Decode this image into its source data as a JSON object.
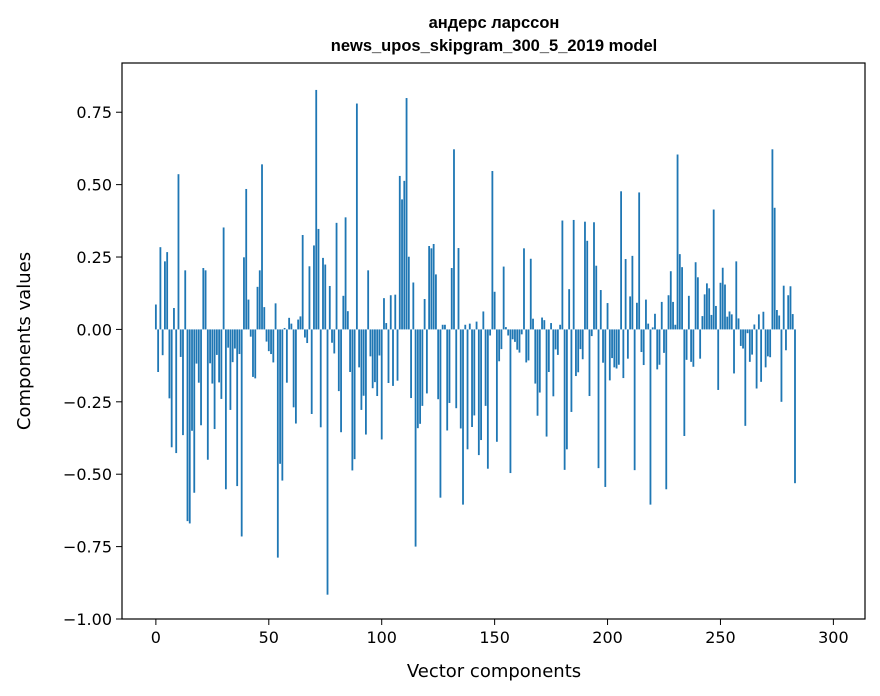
{
  "chart_data": {
    "type": "bar",
    "title_line1": "андерс ларссон",
    "title_line2": "news_upos_skipgram_300_5_2019 model",
    "xlabel": "Vector components",
    "ylabel": "Components values",
    "xlim": [
      -15,
      314
    ],
    "ylim": [
      -1.0,
      0.92
    ],
    "xticks": [
      0,
      50,
      100,
      150,
      200,
      250,
      300
    ],
    "xtick_labels": [
      "0",
      "50",
      "100",
      "150",
      "200",
      "250",
      "300"
    ],
    "yticks": [
      0.75,
      0.5,
      0.25,
      0.0,
      -0.25,
      -0.5,
      -0.75,
      -1.0
    ],
    "ytick_labels": [
      "0.75",
      "0.50",
      "0.25",
      "0.00",
      "−0.25",
      "−0.50",
      "−0.75",
      "−1.00"
    ],
    "bar_color": "#1f77b4",
    "grid": false,
    "values": [
      0.086,
      -0.147,
      0.284,
      -0.089,
      0.235,
      0.267,
      -0.238,
      -0.407,
      0.074,
      -0.427,
      0.536,
      -0.095,
      -0.365,
      0.204,
      -0.662,
      -0.67,
      -0.35,
      -0.564,
      -0.118,
      -0.184,
      -0.331,
      0.212,
      0.204,
      -0.45,
      -0.117,
      -0.187,
      -0.344,
      -0.088,
      -0.183,
      -0.24,
      0.352,
      -0.552,
      -0.063,
      -0.278,
      -0.113,
      -0.066,
      -0.541,
      -0.085,
      -0.715,
      0.249,
      0.485,
      0.103,
      -0.025,
      -0.164,
      -0.169,
      0.147,
      0.204,
      0.57,
      0.077,
      -0.042,
      -0.075,
      -0.085,
      -0.114,
      0.09,
      -0.788,
      -0.464,
      -0.522,
      0.005,
      -0.184,
      0.04,
      0.02,
      -0.269,
      -0.325,
      0.034,
      0.045,
      0.326,
      -0.028,
      -0.047,
      0.218,
      -0.292,
      0.29,
      0.827,
      0.347,
      -0.338,
      0.247,
      0.224,
      -0.916,
      0.15,
      -0.046,
      -0.083,
      0.368,
      -0.213,
      -0.355,
      0.116,
      0.387,
      0.063,
      -0.147,
      -0.487,
      -0.448,
      0.78,
      -0.131,
      -0.278,
      -0.229,
      -0.363,
      0.204,
      -0.093,
      -0.203,
      -0.182,
      -0.23,
      -0.09,
      -0.38,
      0.108,
      0.022,
      -0.185,
      0.118,
      -0.195,
      0.12,
      -0.177,
      0.53,
      0.449,
      0.513,
      0.799,
      0.251,
      -0.237,
      0.162,
      -0.75,
      -0.341,
      -0.326,
      -0.264,
      0.105,
      -0.221,
      0.288,
      0.28,
      0.295,
      0.19,
      -0.241,
      -0.581,
      0.016,
      0.016,
      -0.349,
      -0.254,
      0.212,
      0.622,
      -0.272,
      0.281,
      -0.342,
      -0.605,
      0.016,
      -0.414,
      0.02,
      -0.337,
      -0.297,
      0.027,
      -0.434,
      -0.382,
      0.062,
      -0.264,
      -0.481,
      -0.021,
      0.547,
      0.13,
      -0.388,
      -0.11,
      -0.068,
      0.217,
      0.008,
      -0.021,
      -0.496,
      -0.034,
      -0.043,
      -0.07,
      -0.08,
      -0.017,
      0.28,
      -0.114,
      -0.107,
      0.244,
      0.037,
      -0.187,
      -0.298,
      -0.218,
      0.041,
      0.032,
      -0.37,
      -0.147,
      0.022,
      -0.231,
      -0.069,
      -0.088,
      0.016,
      0.376,
      -0.485,
      -0.414,
      0.139,
      -0.285,
      0.378,
      -0.161,
      -0.148,
      -0.068,
      -0.103,
      0.372,
      0.306,
      -0.23,
      -0.023,
      0.37,
      0.22,
      -0.479,
      0.136,
      -0.115,
      -0.544,
      0.091,
      -0.176,
      -0.099,
      -0.131,
      -0.135,
      -0.122,
      0.477,
      -0.168,
      0.243,
      -0.101,
      0.114,
      0.254,
      -0.486,
      0.092,
      0.473,
      -0.078,
      -0.123,
      0.103,
      0.02,
      -0.605,
      0.007,
      0.054,
      -0.138,
      -0.122,
      0.095,
      -0.081,
      -0.552,
      0.118,
      0.201,
      0.095,
      0.016,
      0.604,
      0.26,
      0.215,
      -0.368,
      -0.105,
      0.116,
      -0.112,
      -0.129,
      0.232,
      0.18,
      -0.101,
      0.046,
      0.121,
      0.159,
      0.142,
      0.05,
      0.414,
      0.081,
      -0.209,
      0.161,
      0.213,
      0.155,
      0.044,
      0.062,
      0.052,
      -0.152,
      0.235,
      0.038,
      -0.057,
      -0.066,
      -0.333,
      -0.013,
      -0.112,
      -0.087,
      0.017,
      -0.204,
      0.052,
      -0.181,
      0.061,
      -0.131,
      -0.093,
      -0.096,
      0.622,
      0.42,
      0.067,
      0.048,
      -0.25,
      0.151,
      -0.072,
      0.118,
      0.149,
      0.053,
      -0.531
    ]
  }
}
